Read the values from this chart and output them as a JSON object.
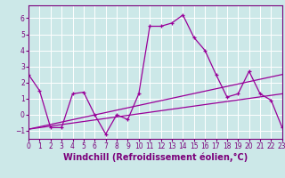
{
  "title": "",
  "xlabel": "Windchill (Refroidissement éolien,°C)",
  "ylabel": "",
  "bg_color": "#cce8e8",
  "line_color": "#990099",
  "grid_color": "#ffffff",
  "xmin": 0,
  "xmax": 23,
  "ymin": -1.5,
  "ymax": 6.8,
  "yticks": [
    -1,
    0,
    1,
    2,
    3,
    4,
    5,
    6
  ],
  "xticks": [
    0,
    1,
    2,
    3,
    4,
    5,
    6,
    7,
    8,
    9,
    10,
    11,
    12,
    13,
    14,
    15,
    16,
    17,
    18,
    19,
    20,
    21,
    22,
    23
  ],
  "line1_x": [
    0,
    1,
    2,
    3,
    4,
    5,
    6,
    7,
    8,
    9,
    10,
    11,
    12,
    13,
    14,
    15,
    16,
    17,
    18,
    19,
    20,
    21,
    22,
    23
  ],
  "line1_y": [
    2.5,
    1.5,
    -0.8,
    -0.8,
    1.3,
    1.4,
    0.0,
    -1.2,
    0.0,
    -0.3,
    1.3,
    5.5,
    5.5,
    5.7,
    6.2,
    4.8,
    4.0,
    2.5,
    1.1,
    1.3,
    2.7,
    1.3,
    0.9,
    -0.8
  ],
  "line2_x": [
    0,
    23
  ],
  "line2_y": [
    -0.9,
    1.3
  ],
  "line3_x": [
    0,
    23
  ],
  "line3_y": [
    -0.9,
    2.5
  ],
  "tick_fontsize": 5.5,
  "xlabel_fontsize": 7.0
}
